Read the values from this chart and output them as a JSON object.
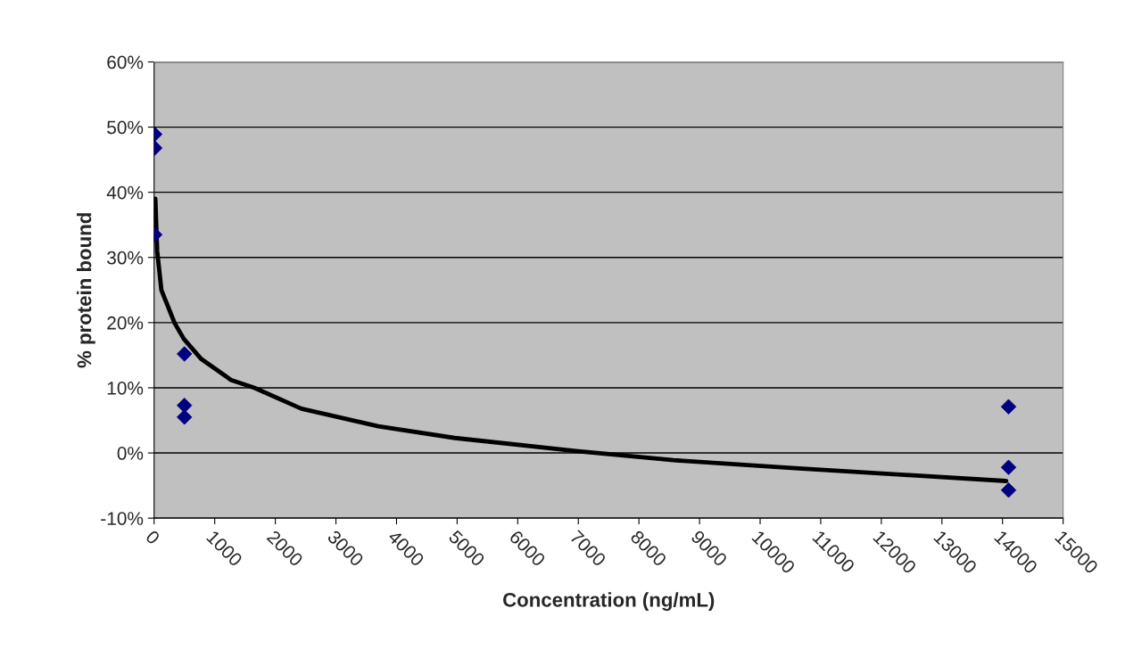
{
  "chart_data": {
    "type": "scatter",
    "xlabel": "Concentration (ng/mL)",
    "ylabel": "% protein bound",
    "xlim": [
      0,
      15000
    ],
    "xticks": [
      0,
      1000,
      2000,
      3000,
      4000,
      5000,
      6000,
      7000,
      8000,
      9000,
      10000,
      11000,
      12000,
      13000,
      14000,
      15000
    ],
    "ylim": [
      -10,
      60
    ],
    "yticks": [
      {
        "value": -10,
        "label": "-10%"
      },
      {
        "value": 0,
        "label": "0%"
      },
      {
        "value": 10,
        "label": "10%"
      },
      {
        "value": 20,
        "label": "20%"
      },
      {
        "value": 30,
        "label": "30%"
      },
      {
        "value": 40,
        "label": "40%"
      },
      {
        "value": 50,
        "label": "50%"
      },
      {
        "value": 60,
        "label": "60%"
      }
    ],
    "grid": "y",
    "marker": "diamond",
    "series": [
      {
        "color": "#000080",
        "x": [
          10,
          10,
          10,
          500,
          500,
          500,
          14100,
          14100,
          14100
        ],
        "values": [
          48.9,
          46.8,
          33.5,
          15.2,
          7.3,
          5.5,
          7.1,
          -2.2,
          -5.7
        ]
      },
      {
        "type": "line",
        "color": "#000000",
        "marker": "none",
        "line_style": "solid",
        "x": [
          20,
          50,
          120,
          340,
          490,
          780,
          1270,
          1655,
          2430,
          3700,
          4965,
          6960,
          8570,
          10520,
          12460,
          14060
        ],
        "values": [
          39,
          31,
          25,
          19.9,
          17.5,
          14.4,
          11.2,
          10,
          6.8,
          4.1,
          2.3,
          0.3,
          -1.1,
          -2.3,
          -3.4,
          -4.3
        ]
      }
    ]
  }
}
